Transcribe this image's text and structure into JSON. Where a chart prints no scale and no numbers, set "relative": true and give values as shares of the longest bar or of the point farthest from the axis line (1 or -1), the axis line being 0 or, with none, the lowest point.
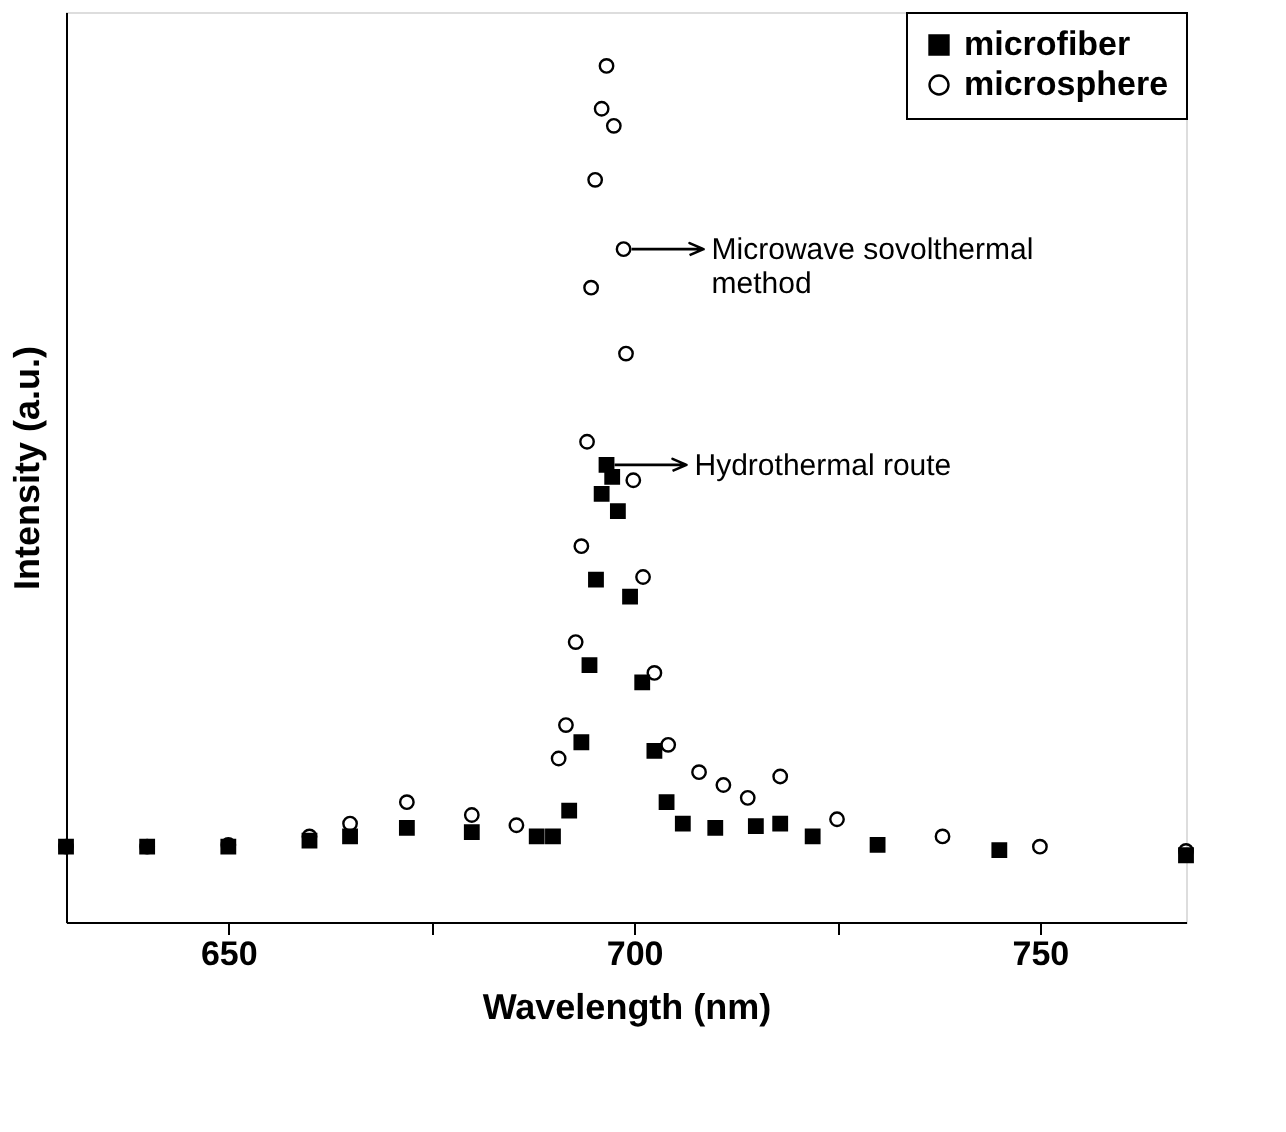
{
  "chart_data": {
    "type": "scatter",
    "xlabel": "Wavelength (nm)",
    "ylabel": "Intensity (a.u.)",
    "relative": true,
    "xlim": [
      630,
      768
    ],
    "xticks": [
      650,
      {
        "value": 675,
        "label": null
      },
      700,
      {
        "value": 725,
        "label": null
      },
      750
    ],
    "legend": "top right",
    "grid": false,
    "series": [
      {
        "name": "microfiber",
        "color": "#000000",
        "marker": "square",
        "x": [
          630,
          640,
          650,
          660,
          665,
          672,
          680,
          688,
          690,
          692,
          693.5,
          694.5,
          695.3,
          696,
          696.6,
          697.3,
          698,
          699.5,
          701,
          702.5,
          704,
          706,
          710,
          715,
          718,
          722,
          730,
          745,
          768
        ],
        "values": [
          0.088,
          0.088,
          0.088,
          0.095,
          0.1,
          0.11,
          0.105,
          0.1,
          0.1,
          0.13,
          0.21,
          0.3,
          0.4,
          0.5,
          0.534,
          0.52,
          0.48,
          0.38,
          0.28,
          0.2,
          0.14,
          0.115,
          0.11,
          0.112,
          0.115,
          0.1,
          0.09,
          0.084,
          0.078
        ]
      },
      {
        "name": "microsphere",
        "color": "#000000",
        "marker": "circle",
        "x": [
          630,
          640,
          650,
          660,
          665,
          672,
          680,
          685.5,
          690.7,
          691.6,
          692.8,
          693.5,
          694.2,
          694.7,
          695.2,
          696,
          696.6,
          697.5,
          698.7,
          699.0,
          699.9,
          701.1,
          702.5,
          704.2,
          708,
          711,
          714,
          718,
          725,
          738,
          750,
          768
        ],
        "values": [
          0.088,
          0.088,
          0.09,
          0.1,
          0.115,
          0.14,
          0.125,
          0.113,
          0.191,
          0.23,
          0.327,
          0.439,
          0.561,
          0.741,
          0.867,
          0.95,
          1.0,
          0.93,
          0.786,
          0.664,
          0.516,
          0.403,
          0.291,
          0.207,
          0.175,
          0.16,
          0.145,
          0.17,
          0.12,
          0.1,
          0.088,
          0.083
        ]
      }
    ],
    "annotations": [
      {
        "text": "Microwave sovolthermal\nmethod",
        "x": 698.7,
        "y": 0.786
      },
      {
        "text": "Hydrothermal route",
        "x": 696.6,
        "y": 0.534
      }
    ]
  }
}
